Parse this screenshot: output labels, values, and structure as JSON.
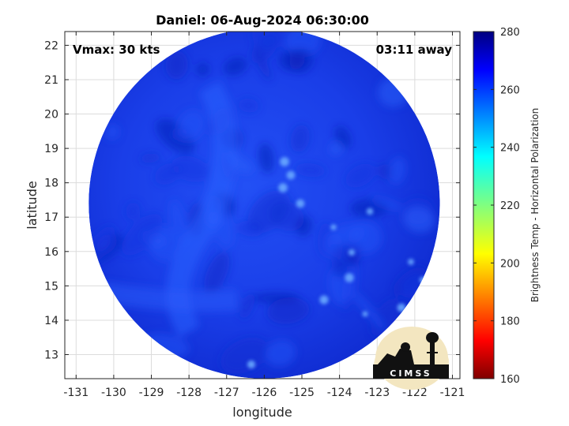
{
  "chart_data": {
    "type": "heatmap",
    "title": "Daniel: 06-Aug-2024 06:30:00",
    "xlabel": "longitude",
    "ylabel": "latitude",
    "xlim": [
      -131.3,
      -120.8
    ],
    "ylim": [
      12.3,
      22.4
    ],
    "xticks": [
      -131,
      -130,
      -129,
      -128,
      -127,
      -126,
      -125,
      -124,
      -123,
      -122,
      -121
    ],
    "yticks": [
      13,
      14,
      15,
      16,
      17,
      18,
      19,
      20,
      21,
      22
    ],
    "grid": true,
    "annotations": {
      "left": "Vmax: 30 kts",
      "right": "03:11 away"
    },
    "swath": {
      "center": [
        -126.0,
        17.4
      ],
      "radius_deg_lat": 5.1
    },
    "colorbar": {
      "label": "Brightness Temp - Horizontal Polarization",
      "range": [
        160,
        280
      ],
      "ticks": [
        160,
        180,
        200,
        220,
        240,
        260,
        280
      ],
      "colormap": "jet"
    },
    "field_range_observed": [
      250,
      275
    ]
  },
  "logo": {
    "text": "CIMSS"
  },
  "colors": {
    "swath_dark": "#0d22c4",
    "swath_mid": "#1a3cf0",
    "swath_light": "#2d62ff"
  }
}
